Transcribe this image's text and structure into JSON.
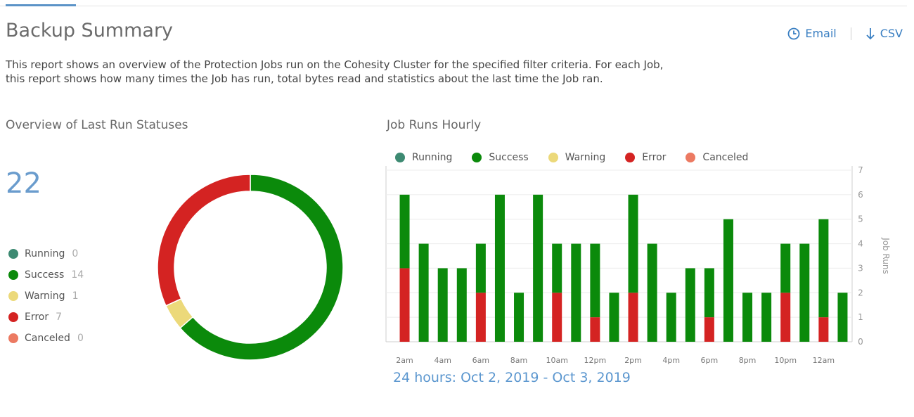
{
  "page": {
    "title": "Backup Summary",
    "description_line1": "This report shows an overview of the Protection Jobs run on the Cohesity Cluster for the specified filter criteria. For each Job,",
    "description_line2": "this report shows how many times the Job has run, total bytes read and statistics about the last time the Job ran."
  },
  "actions": {
    "email_label": "Email",
    "email_icon": "clock-icon",
    "csv_label": "CSV",
    "csv_icon": "download-arrow-icon"
  },
  "colors": {
    "running": "#3d8a72",
    "success": "#0b8a0b",
    "warning": "#ecd97a",
    "error": "#d42322",
    "canceled": "#ec7a62",
    "accent": "#3a7fc2"
  },
  "overview": {
    "title": "Overview of Last Run Statuses",
    "total": "22",
    "statuses": [
      {
        "key": "running",
        "label": "Running",
        "count": "0"
      },
      {
        "key": "success",
        "label": "Success",
        "count": "14"
      },
      {
        "key": "warning",
        "label": "Warning",
        "count": "1"
      },
      {
        "key": "error",
        "label": "Error",
        "count": "7"
      },
      {
        "key": "canceled",
        "label": "Canceled",
        "count": "0"
      }
    ]
  },
  "hourly": {
    "title": "Job Runs Hourly",
    "legend": [
      {
        "key": "running",
        "label": "Running"
      },
      {
        "key": "success",
        "label": "Success"
      },
      {
        "key": "warning",
        "label": "Warning"
      },
      {
        "key": "error",
        "label": "Error"
      },
      {
        "key": "canceled",
        "label": "Canceled"
      }
    ],
    "range_label": "24 hours: Oct 2, 2019 - Oct 3, 2019"
  },
  "chart_data": [
    {
      "type": "pie",
      "categories": [
        "Running",
        "Success",
        "Warning",
        "Error",
        "Canceled"
      ],
      "values": [
        0,
        14,
        1,
        7,
        0
      ]
    },
    {
      "type": "bar",
      "stacked": true,
      "categories": [
        "2am",
        "3am",
        "4am",
        "5am",
        "6am",
        "7am",
        "8am",
        "9am",
        "10am",
        "11am",
        "12pm",
        "1pm",
        "2pm",
        "3pm",
        "4pm",
        "5pm",
        "6pm",
        "7pm",
        "8pm",
        "9pm",
        "10pm",
        "11pm",
        "12am",
        "1am"
      ],
      "tick_labels": [
        "2am",
        "4am",
        "6am",
        "8am",
        "10am",
        "12pm",
        "2pm",
        "4pm",
        "6pm",
        "8pm",
        "10pm",
        "12am"
      ],
      "series": [
        {
          "name": "Error",
          "key": "error",
          "values": [
            3,
            0,
            0,
            0,
            2,
            0,
            0,
            0,
            2,
            0,
            1,
            0,
            2,
            0,
            0,
            0,
            1,
            0,
            0,
            0,
            2,
            0,
            1,
            0
          ]
        },
        {
          "name": "Success",
          "key": "success",
          "values": [
            3,
            4,
            3,
            3,
            2,
            6,
            2,
            6,
            2,
            4,
            3,
            2,
            4,
            4,
            2,
            3,
            2,
            5,
            2,
            2,
            2,
            4,
            4,
            2
          ]
        }
      ],
      "ylabel": "Job Runs",
      "ylim": [
        0,
        7
      ],
      "yticks": [
        "0",
        "1",
        "2",
        "3",
        "4",
        "5",
        "6",
        "7"
      ],
      "y_axis_position": "right",
      "grid": true,
      "legend_position": "top"
    }
  ]
}
